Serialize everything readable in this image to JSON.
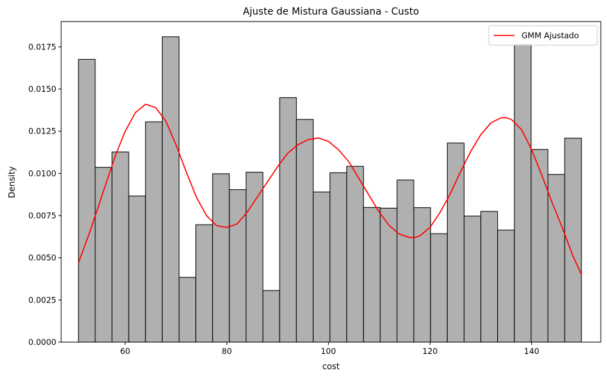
{
  "chart_data": {
    "type": "bar",
    "title": "Ajuste de Mistura Gaussiana - Custo",
    "xlabel": "cost",
    "ylabel": "Density",
    "xlim": [
      47.4,
      153.6
    ],
    "ylim": [
      0,
      0.019
    ],
    "xticks": [
      60,
      80,
      100,
      120,
      140
    ],
    "yticks": [
      0.0,
      0.0025,
      0.005,
      0.0075,
      0.01,
      0.0125,
      0.015,
      0.0175
    ],
    "ytick_labels": [
      "0.0000",
      "0.0025",
      "0.0050",
      "0.0075",
      "0.0100",
      "0.0125",
      "0.0150",
      "0.0175"
    ],
    "grid": false,
    "legend_position": "top-right",
    "histogram": {
      "bin_edges": [
        50.8,
        54.1,
        57.4,
        60.7,
        64.0,
        67.3,
        70.6,
        73.9,
        77.2,
        80.5,
        83.8,
        87.1,
        90.4,
        93.7,
        97.0,
        100.3,
        103.6,
        106.9,
        110.2,
        113.5,
        116.8,
        120.1,
        123.4,
        126.7,
        130.0,
        133.3,
        136.6,
        139.9,
        143.2,
        146.5,
        149.8
      ],
      "values": [
        0.01676,
        0.01036,
        0.01127,
        0.00866,
        0.01306,
        0.0181,
        0.00384,
        0.00696,
        0.00998,
        0.00904,
        0.01007,
        0.00306,
        0.01449,
        0.0132,
        0.0089,
        0.01004,
        0.01042,
        0.00798,
        0.00794,
        0.00961,
        0.00797,
        0.00643,
        0.0118,
        0.00747,
        0.00775,
        0.00664,
        0.01764,
        0.01142,
        0.00994,
        0.01209
      ],
      "fill": "#b0b0b0",
      "edge": "#000000"
    },
    "series": [
      {
        "name": "GMM Ajustado",
        "color": "#ff0000",
        "x": [
          50.8,
          53,
          56,
          58,
          60,
          62,
          64,
          66,
          68,
          70,
          72,
          74,
          76,
          78,
          80,
          82,
          84,
          86,
          88,
          90,
          92,
          94,
          96,
          98,
          100,
          102,
          104,
          106,
          108,
          110,
          112,
          114,
          116,
          117,
          118,
          120,
          122,
          124,
          126,
          128,
          130,
          132,
          134,
          135,
          136,
          138,
          140,
          142,
          144,
          146,
          148,
          149.8
        ],
        "y": [
          0.0047,
          0.0065,
          0.0092,
          0.011,
          0.0125,
          0.0136,
          0.0141,
          0.0139,
          0.0131,
          0.0117,
          0.0101,
          0.0086,
          0.0075,
          0.0069,
          0.0068,
          0.007,
          0.0077,
          0.0086,
          0.0095,
          0.0104,
          0.0112,
          0.0117,
          0.012,
          0.0121,
          0.0119,
          0.0114,
          0.0107,
          0.0097,
          0.0087,
          0.0077,
          0.0069,
          0.0064,
          0.0062,
          0.0062,
          0.0063,
          0.0068,
          0.0077,
          0.0088,
          0.0101,
          0.0113,
          0.0123,
          0.013,
          0.0133,
          0.0133,
          0.0132,
          0.0126,
          0.0114,
          0.0099,
          0.0083,
          0.0068,
          0.0052,
          0.004
        ]
      }
    ]
  }
}
